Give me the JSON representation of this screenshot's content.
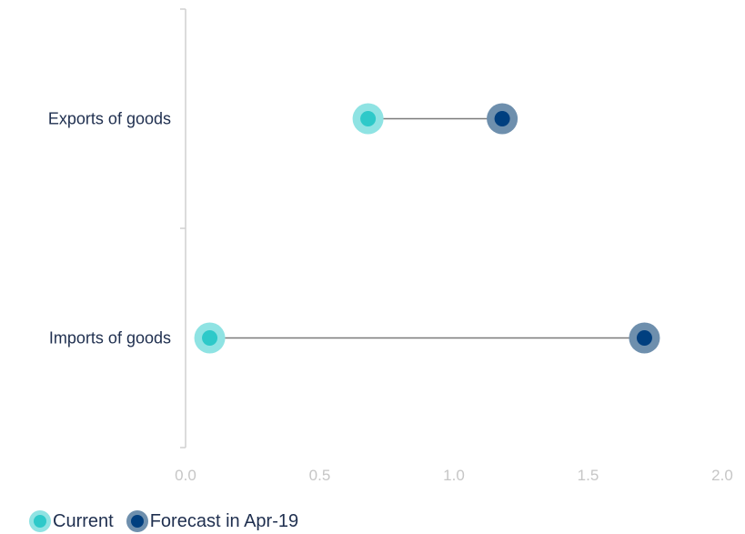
{
  "chart_data": {
    "type": "dumbbell",
    "categories": [
      "Exports of goods",
      "Imports of goods"
    ],
    "series": [
      {
        "name": "Current",
        "values": [
          0.68,
          0.09
        ],
        "color": "#2ec9c9",
        "halo": "#8fe3e3"
      },
      {
        "name": "Forecast in Apr-19",
        "values": [
          1.18,
          1.71
        ],
        "color": "#003f7f",
        "halo": "#6e8fad"
      }
    ],
    "x_ticks": [
      "0.0",
      "0.5",
      "1.0",
      "1.5",
      "2.0"
    ],
    "xlim": [
      0,
      2
    ],
    "connector_color": "#7a7a7a",
    "legend_position": "bottom-left",
    "grid": false
  }
}
